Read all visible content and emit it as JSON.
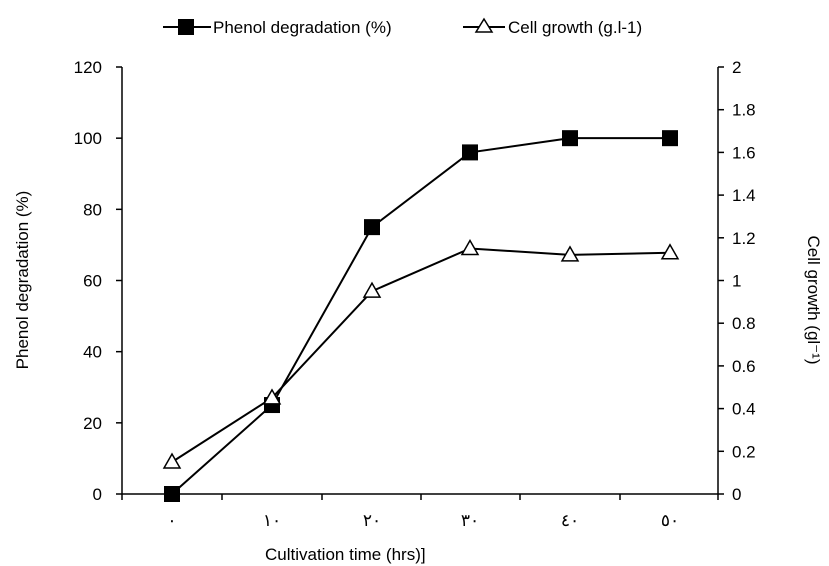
{
  "chart_data": {
    "type": "line",
    "title": "",
    "xlabel": "Cultivation time   (hrs)]",
    "ylabel_left": "Phenol degradation (%)",
    "ylabel_right": "Cell growth  (gl⁻¹)",
    "categories": [
      "٠",
      "١٠",
      "٢٠",
      "٣٠",
      "٤٠",
      "٥٠"
    ],
    "y_left": {
      "min": 0,
      "max": 120,
      "step": 20,
      "ticks": [
        "0",
        "20",
        "40",
        "60",
        "80",
        "100",
        "120"
      ]
    },
    "y_right": {
      "min": 0,
      "max": 2,
      "step": 0.2,
      "ticks": [
        "0",
        "0.2",
        "0.4",
        "0.6",
        "0.8",
        "1",
        "1.2",
        "1.4",
        "1.6",
        "1.8",
        "2"
      ]
    },
    "grid": false,
    "legend_position": "top",
    "series": [
      {
        "name": "Phenol degradation  (%)",
        "axis": "left",
        "marker": "square",
        "color": "#000000",
        "values": [
          0,
          25,
          75,
          96,
          100,
          100
        ]
      },
      {
        "name": "Cell growth (g.l-1)",
        "axis": "right",
        "marker": "triangle-open",
        "color": "#000000",
        "values": [
          0.15,
          0.45,
          0.95,
          1.15,
          1.12,
          1.13
        ]
      }
    ]
  }
}
